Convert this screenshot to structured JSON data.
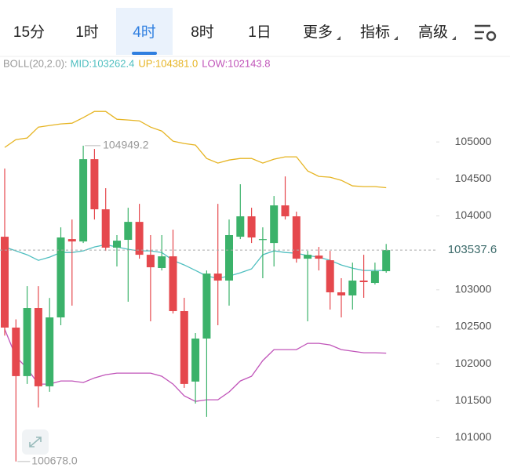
{
  "tabs": [
    "15分",
    "1时",
    "4时",
    "8时",
    "1日",
    "更多",
    "指标",
    "高级"
  ],
  "selected_tab": 2,
  "chart_data": {
    "type": "candlestick",
    "indicator": "BOLL(20,2.0):",
    "up_color": "#3bb26a",
    "down_color": "#e5484d",
    "ylim": [
      100560,
      105860
    ],
    "yticks": [
      101000,
      101500,
      102000,
      102500,
      103000,
      104000,
      104500,
      105000
    ],
    "low_label": "100678.0",
    "candles": {
      "open": [
        103718,
        102489,
        101833,
        102754,
        101695,
        102627,
        103686,
        103654,
        104767,
        104089,
        103570,
        103676,
        103919,
        103474,
        103295,
        103453,
        102712,
        101759,
        102341,
        103220,
        103125,
        103718,
        103994,
        103676,
        103633,
        104142,
        103994,
        103421,
        103463,
        103400,
        102966,
        102924,
        103125,
        103093,
        103252
      ],
      "high": [
        104640,
        102600,
        103050,
        103050,
        102890,
        103845,
        103951,
        104949.2,
        104905,
        104375,
        103740,
        104110,
        104163,
        103740,
        103740,
        103814,
        102892,
        102415,
        103262,
        104163,
        103951,
        104428,
        104110,
        103845,
        104269,
        104534,
        104057,
        103527,
        103580,
        103527,
        103157,
        103368,
        103474,
        103368,
        103620
      ],
      "low": [
        102380,
        100678,
        101727,
        101409,
        101621,
        102521,
        102786,
        103633,
        103951,
        103527,
        103316,
        102839,
        103421,
        102574,
        103262,
        102680,
        101674,
        101462,
        101282,
        102521,
        102786,
        103686,
        103633,
        103157,
        103316,
        103951,
        103368,
        102574,
        103262,
        102733,
        102627,
        102733,
        102892,
        103072,
        103231
      ],
      "close": [
        102489,
        101833,
        102754,
        101695,
        102627,
        103708,
        103654,
        104767,
        104089,
        103570,
        103665,
        103919,
        103474,
        103305,
        103453,
        102712,
        101727,
        102341,
        103220,
        103125,
        103740,
        103994,
        103708,
        103686,
        104142,
        103994,
        103421,
        103474,
        103421,
        102966,
        102924,
        103125,
        103104,
        103252,
        103537.6
      ]
    },
    "series": [
      {
        "name": "MID:103262.4",
        "color": "#4fbfc0",
        "values": [
          103580,
          103527,
          103474,
          103399,
          103442,
          103505,
          103505,
          103527,
          103580,
          103611,
          103580,
          103548,
          103527,
          103527,
          103505,
          103399,
          103336,
          103262,
          103187,
          103156,
          103187,
          103230,
          103283,
          103474,
          103527,
          103505,
          103495,
          103463,
          103442,
          103399,
          103336,
          103293,
          103262,
          103262,
          103262.4
        ]
      },
      {
        "name": "UP:104381.0",
        "color": "#e6b422",
        "values": [
          104926,
          105032,
          105053,
          105201,
          105223,
          105244,
          105254,
          105329,
          105413,
          105413,
          105307,
          105297,
          105286,
          105201,
          105148,
          105011,
          104979,
          104958,
          104777,
          104714,
          104756,
          104777,
          104777,
          104714,
          104767,
          104799,
          104799,
          104608,
          104534,
          104523,
          104481,
          104406,
          104396,
          104396,
          104381
        ]
      },
      {
        "name": "LOW:102143.8",
        "color": "#c054b9",
        "values": [
          102467,
          102096,
          101937,
          101725,
          101725,
          101767,
          101767,
          101746,
          101809,
          101852,
          101873,
          101873,
          101873,
          101873,
          101831,
          101725,
          101566,
          101491,
          101513,
          101513,
          101619,
          101767,
          101831,
          102043,
          102191,
          102191,
          102191,
          102276,
          102276,
          102255,
          102191,
          102170,
          102149,
          102149,
          102143.8
        ]
      }
    ]
  }
}
